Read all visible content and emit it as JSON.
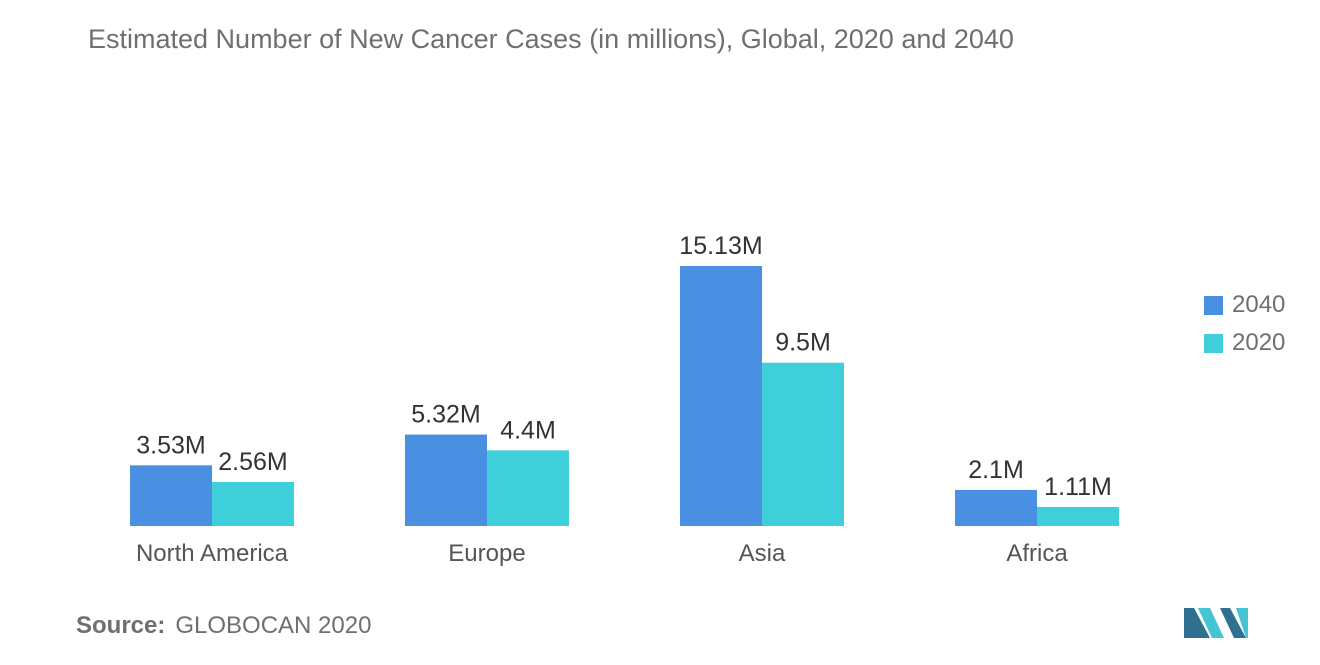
{
  "header": {
    "title": "Estimated Number of New Cancer Cases (in millions), Global, 2020 and 2040"
  },
  "source": {
    "label": "Source:",
    "text": "GLOBOCAN 2020"
  },
  "colors": {
    "series_2040": "#4a90e2",
    "series_2020": "#3ecfdb",
    "text": "#6f6f6f",
    "axis_label": "#555555",
    "data_label": "#333333"
  },
  "logo": {
    "icon": "mordor-intelligence-logo-icon",
    "colors": [
      "#2f6f8f",
      "#45c4d4"
    ]
  },
  "chart_data": {
    "type": "bar",
    "title": "Estimated Number of New Cancer Cases (in millions), Global, 2020 and 2040",
    "xlabel": "",
    "ylabel": "",
    "categories": [
      "North America",
      "Europe",
      "Asia",
      "Africa"
    ],
    "series": [
      {
        "name": "2040",
        "values": [
          3.53,
          5.32,
          15.13,
          2.1
        ],
        "labels": [
          "3.53M",
          "5.32M",
          "15.13M",
          "2.1M"
        ]
      },
      {
        "name": "2020",
        "values": [
          2.56,
          4.4,
          9.5,
          1.11
        ],
        "labels": [
          "2.56M",
          "4.4M",
          "9.5M",
          "1.11M"
        ]
      }
    ],
    "ylim": [
      0,
      15.13
    ],
    "grid": false,
    "legend_position": "right"
  }
}
